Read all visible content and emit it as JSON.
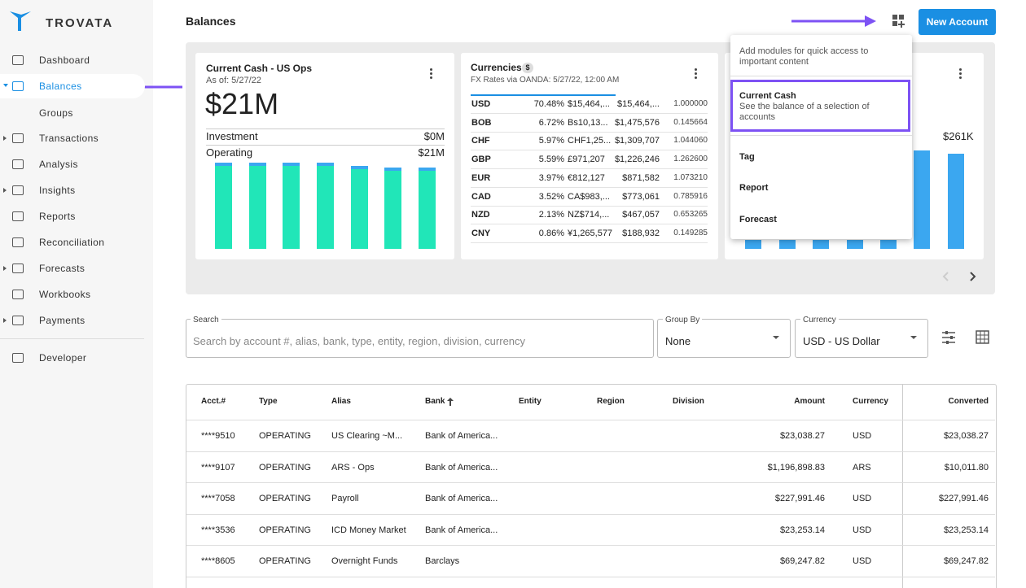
{
  "sidebar": {
    "brand": "TROVATA",
    "nav": [
      "Dashboard",
      "Balances",
      "Groups",
      "Transactions",
      "Analysis",
      "Insights",
      "Reports",
      "Reconciliation",
      "Forecasts",
      "Workbooks",
      "Payments",
      "Developer"
    ]
  },
  "header": {
    "title": "Balances",
    "button": "New Account"
  },
  "cards": {
    "current_cash": {
      "title": "Current Cash - US Ops",
      "as_of": "As of: 5/27/22",
      "amount": "$21M",
      "rows": [
        [
          "Investment",
          "$0M"
        ],
        [
          "Operating",
          "$21M"
        ]
      ]
    },
    "currencies": {
      "title": "Currencies",
      "badge": "$",
      "subtitle": "FX Rates via OANDA: 5/27/22, 12:00 AM",
      "rows": [
        [
          "USD",
          "70.48%",
          "$15,464,...",
          "$15,464,...",
          "1.000000"
        ],
        [
          "BOB",
          "6.72%",
          "Bs10,13...",
          "$1,475,576",
          "0.145664"
        ],
        [
          "CHF",
          "5.97%",
          "CHF1,25...",
          "$1,309,707",
          "1.044060"
        ],
        [
          "GBP",
          "5.59%",
          "£971,207",
          "$1,226,246",
          "1.262600"
        ],
        [
          "EUR",
          "3.97%",
          "€812,127",
          "$871,582",
          "1.073210"
        ],
        [
          "CAD",
          "3.52%",
          "CA$983,...",
          "$773,061",
          "0.785916"
        ],
        [
          "NZD",
          "2.13%",
          "NZ$714,...",
          "$467,057",
          "0.653265"
        ],
        [
          "CNY",
          "0.86%",
          "¥1,265,577",
          "$188,932",
          "0.149285"
        ]
      ]
    },
    "third": {
      "amount": "$261K"
    }
  },
  "module_menu": {
    "intro": "Add modules for quick access to important content",
    "items": [
      {
        "title": "Current Cash",
        "description": "See the balance of a selection of accounts"
      },
      {
        "title": "Tag"
      },
      {
        "title": "Report"
      },
      {
        "title": "Forecast"
      }
    ]
  },
  "filters": {
    "search": {
      "label": "Search",
      "placeholder": "Search by account #, alias, bank, type, entity, region, division, currency"
    },
    "group_by": {
      "label": "Group By",
      "value": "None"
    },
    "currency": {
      "label": "Currency",
      "value": "USD - US Dollar"
    }
  },
  "table": {
    "columns": [
      "Acct.#",
      "Type",
      "Alias",
      "Bank",
      "Entity",
      "Region",
      "Division",
      "Amount",
      "Currency",
      "Converted"
    ],
    "rows": [
      {
        "acct": "****9510",
        "type": "OPERATING",
        "alias": "US Clearing ~M...",
        "bank": "Bank of America...",
        "amount": "$23,038.27",
        "currency": "USD",
        "converted": "$23,038.27"
      },
      {
        "acct": "****9107",
        "type": "OPERATING",
        "alias": "ARS - Ops",
        "bank": "Bank of America...",
        "amount": "$1,196,898.83",
        "currency": "ARS",
        "converted": "$10,011.80"
      },
      {
        "acct": "****7058",
        "type": "OPERATING",
        "alias": "Payroll",
        "bank": "Bank of America...",
        "amount": "$227,991.46",
        "currency": "USD",
        "converted": "$227,991.46"
      },
      {
        "acct": "****3536",
        "type": "OPERATING",
        "alias": "ICD Money Market",
        "bank": "Bank of America...",
        "amount": "$23,253.14",
        "currency": "USD",
        "converted": "$23,253.14"
      },
      {
        "acct": "****8605",
        "type": "OPERATING",
        "alias": "Overnight Funds",
        "bank": "Barclays",
        "amount": "$69,247.82",
        "currency": "USD",
        "converted": "$69,247.82"
      }
    ]
  }
}
